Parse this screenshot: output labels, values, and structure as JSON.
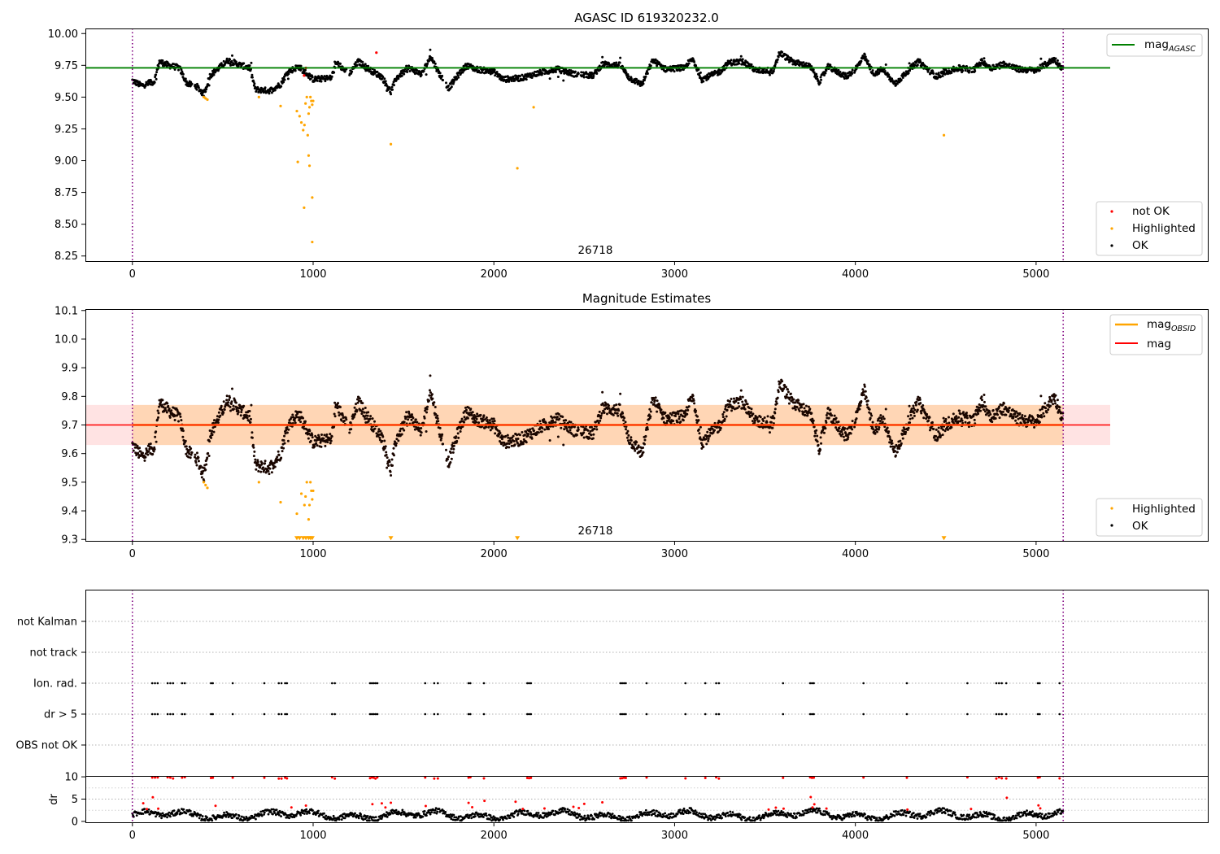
{
  "chart_data": [
    {
      "type": "scatter",
      "title": "AGASC ID 619320232.0",
      "xlabel": "",
      "ylabel": "",
      "xlim": [
        -260,
        5950
      ],
      "ylim": [
        8.21,
        10.04
      ],
      "xticks": [
        0,
        1000,
        2000,
        3000,
        4000,
        5000
      ],
      "yticks": [
        8.25,
        8.5,
        8.75,
        9.0,
        9.25,
        9.5,
        9.75,
        10.0
      ],
      "ytick_labels": [
        "8.25",
        "8.50",
        "8.75",
        "9.00",
        "9.25",
        "9.50",
        "9.75",
        "10.00"
      ],
      "vlines": [
        0,
        5150
      ],
      "hlines": [
        {
          "name": "mag_AGASC",
          "y": 9.73,
          "x": [
            -260,
            5410
          ],
          "color": "#008000"
        }
      ],
      "annotation": {
        "text": "26718",
        "x": 2570,
        "y": 8.27
      },
      "legend_upper": [
        {
          "label": "mag",
          "sub": "AGASC",
          "color": "#008000"
        }
      ],
      "legend_lower": [
        {
          "label": "not OK",
          "color": "#ff0000"
        },
        {
          "label": "Highlighted",
          "color": "#ffa500"
        },
        {
          "label": "OK",
          "color": "#000000"
        }
      ],
      "series": [
        {
          "name": "not OK",
          "color": "#ff0000",
          "points": [
            [
              950,
              9.67
            ],
            [
              1350,
              9.85
            ],
            [
              960,
              9.73
            ]
          ]
        },
        {
          "name": "Highlighted",
          "color": "#ffa500",
          "points": [
            [
              395,
              9.5
            ],
            [
              405,
              9.49
            ],
            [
              415,
              9.48
            ],
            [
              700,
              9.5
            ],
            [
              820,
              9.43
            ],
            [
              910,
              9.39
            ],
            [
              925,
              9.35
            ],
            [
              935,
              9.3
            ],
            [
              945,
              9.24
            ],
            [
              952,
              9.28
            ],
            [
              958,
              9.45
            ],
            [
              965,
              9.5
            ],
            [
              970,
              9.2
            ],
            [
              975,
              9.37
            ],
            [
              980,
              9.42
            ],
            [
              985,
              9.5
            ],
            [
              990,
              9.47
            ],
            [
              995,
              9.44
            ],
            [
              1000,
              9.47
            ],
            [
              915,
              8.99
            ],
            [
              975,
              9.04
            ],
            [
              980,
              8.96
            ],
            [
              950,
              8.63
            ],
            [
              995,
              8.71
            ],
            [
              995,
              8.36
            ],
            [
              1430,
              9.13
            ],
            [
              2130,
              8.94
            ],
            [
              2220,
              9.42
            ],
            [
              4490,
              9.2
            ]
          ]
        },
        {
          "name": "OK",
          "color": "#000000",
          "generated_from": "mag_OK"
        }
      ]
    },
    {
      "type": "scatter",
      "title": "Magnitude Estimates",
      "xlabel": "",
      "ylabel": "",
      "xlim": [
        -260,
        5950
      ],
      "ylim": [
        9.295,
        10.105
      ],
      "xticks": [
        0,
        1000,
        2000,
        3000,
        4000,
        5000
      ],
      "yticks": [
        9.3,
        9.4,
        9.5,
        9.6,
        9.7,
        9.8,
        9.9,
        10.0,
        10.1
      ],
      "ytick_labels": [
        "9.3",
        "9.4",
        "9.5",
        "9.6",
        "9.7",
        "9.8",
        "9.9",
        "10.0",
        "10.1"
      ],
      "vlines": [
        0,
        5150
      ],
      "mag": 9.7,
      "mag_band": [
        9.63,
        9.77
      ],
      "mag_obsid_band": [
        9.63,
        9.77
      ],
      "annotation": {
        "text": "26718",
        "x": 2570,
        "y": 9.32
      },
      "legend_upper": [
        {
          "label": "mag",
          "sub": "OBSID",
          "color": "#ffa500"
        },
        {
          "label": "mag",
          "sub": "",
          "color": "#ff0000"
        }
      ],
      "legend_lower": [
        {
          "label": "Highlighted",
          "color": "#ffa500"
        },
        {
          "label": "OK",
          "color": "#000000"
        }
      ],
      "series": [
        {
          "name": "Highlighted",
          "color": "#ffa500",
          "points": [
            [
              395,
              9.5
            ],
            [
              405,
              9.49
            ],
            [
              415,
              9.48
            ],
            [
              700,
              9.5
            ],
            [
              820,
              9.43
            ],
            [
              910,
              9.39
            ],
            [
              935,
              9.46
            ],
            [
              952,
              9.42
            ],
            [
              958,
              9.45
            ],
            [
              965,
              9.5
            ],
            [
              975,
              9.37
            ],
            [
              980,
              9.42
            ],
            [
              985,
              9.5
            ],
            [
              990,
              9.47
            ],
            [
              995,
              9.44
            ],
            [
              1000,
              9.47
            ]
          ]
        },
        {
          "name": "Highlighted (below range)",
          "color": "#ffa500",
          "marker": "triangle-down",
          "points": [
            [
              910,
              9.3
            ],
            [
              925,
              9.3
            ],
            [
              945,
              9.3
            ],
            [
              960,
              9.3
            ],
            [
              975,
              9.3
            ],
            [
              985,
              9.3
            ],
            [
              995,
              9.3
            ],
            [
              1430,
              9.3
            ],
            [
              2130,
              9.3
            ],
            [
              4490,
              9.3
            ]
          ]
        },
        {
          "name": "OK",
          "color": "#000000",
          "generated_from": "mag_OK"
        }
      ]
    },
    {
      "type": "scatter",
      "title": "",
      "xlim": [
        -260,
        5950
      ],
      "categories": [
        "not Kalman",
        "not track",
        "Ion. rad.",
        "dr > 5",
        "OBS not OK"
      ],
      "vlines": [
        0,
        5150
      ],
      "flag_times": [
        110,
        125,
        140,
        195,
        210,
        225,
        275,
        290,
        435,
        445,
        555,
        730,
        810,
        825,
        845,
        855,
        1105,
        1120,
        1315,
        1325,
        1335,
        1345,
        1355,
        1620,
        1670,
        1690,
        1860,
        1870,
        1945,
        2185,
        2195,
        2205,
        2700,
        2710,
        2720,
        2730,
        2845,
        3060,
        3170,
        3230,
        3245,
        3600,
        3750,
        3760,
        3770,
        4045,
        4285,
        4620,
        4780,
        4795,
        4810,
        4835,
        5010,
        5020,
        5130
      ]
    },
    {
      "type": "scatter",
      "title": "",
      "ylabel": "dr",
      "xlim": [
        -260,
        5950
      ],
      "ylim": [
        -0.2,
        10.2
      ],
      "xticks": [
        0,
        1000,
        2000,
        3000,
        4000,
        5000
      ],
      "yticks": [
        0,
        5,
        10
      ],
      "ytick_labels": [
        "0",
        "5",
        "10"
      ],
      "vlines": [
        0,
        5150
      ],
      "series": [
        {
          "name": "dr",
          "color": "#000000",
          "generated_from": "dr"
        },
        {
          "name": "dr (flagged)",
          "color": "#ff0000",
          "generated_from": "dr_flagged"
        }
      ]
    }
  ],
  "ticks": {
    "x": [
      "0",
      "1000",
      "2000",
      "3000",
      "4000",
      "5000"
    ]
  }
}
